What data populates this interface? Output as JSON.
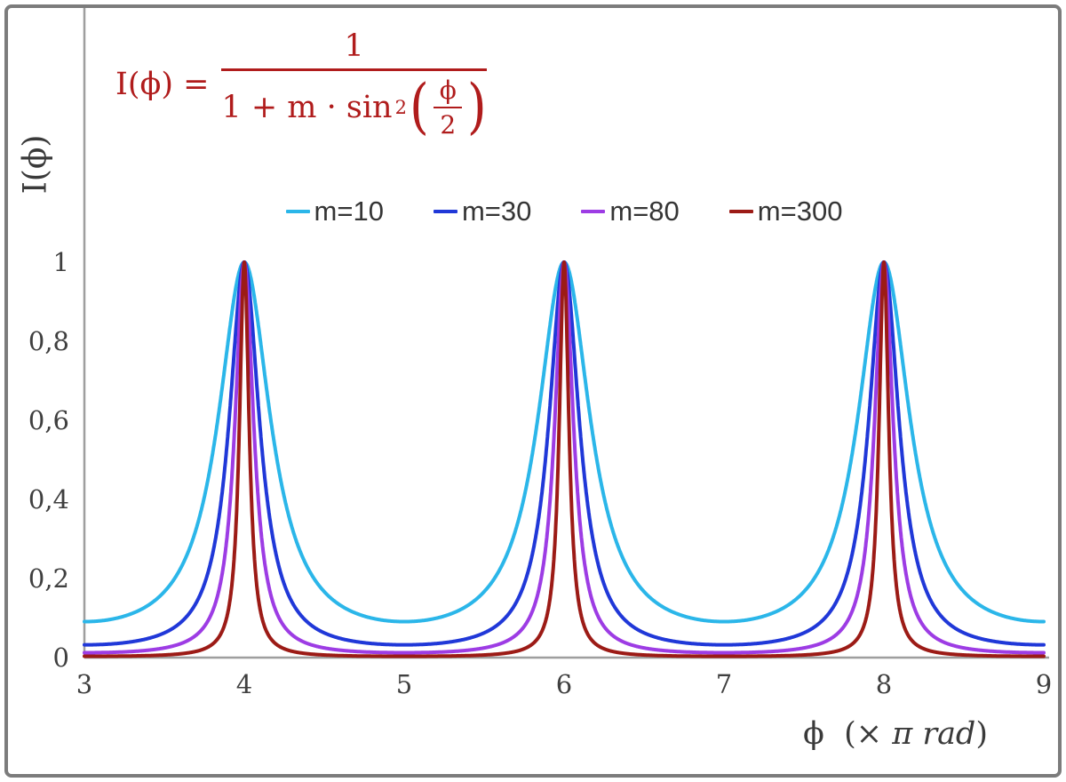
{
  "frame": {
    "background": "#ffffff",
    "border_color": "#7c7c7c"
  },
  "formula": {
    "color": "#b01c1c",
    "lhs": "I(ϕ) =",
    "numerator": "1",
    "denominator_prefix": "1 + m · sin",
    "denominator_exponent": "2",
    "inner_numerator": "ϕ",
    "inner_denominator": "2"
  },
  "chart_data": {
    "type": "line",
    "title": "",
    "formula_text": "I(ϕ) = 1 / (1 + m·sin²(ϕ/2)), ϕ expressed in units of π rad",
    "x_axis": {
      "label": "ϕ (× π rad)",
      "label_parts": {
        "pre": "ϕ  (× ",
        "italic": "π rad",
        "post": ")"
      },
      "min": 3,
      "max": 9,
      "tick_values": [
        3,
        4,
        5,
        6,
        7,
        8,
        9
      ],
      "tick_labels": [
        "3",
        "4",
        "5",
        "6",
        "7",
        "8",
        "9"
      ]
    },
    "y_axis": {
      "label": "I(ϕ)",
      "min": 0,
      "max": 1,
      "tick_values": [
        0,
        0.2,
        0.4,
        0.6,
        0.8,
        1
      ],
      "tick_labels": [
        "0",
        "0,2",
        "0,4",
        "0,6",
        "0,8",
        "1"
      ]
    },
    "series": [
      {
        "name": "m=10",
        "m": 10,
        "color": "#2bb6e9"
      },
      {
        "name": "m=30",
        "m": 30,
        "color": "#2038d8"
      },
      {
        "name": "m=80",
        "m": 80,
        "color": "#9d3ce4"
      },
      {
        "name": "m=300",
        "m": 300,
        "color": "#9c1b16"
      }
    ],
    "peaks": {
      "x": [
        4,
        6,
        8
      ],
      "y": 1
    },
    "minima_values": {
      "m=10": 0.091,
      "m=30": 0.032,
      "m=80": 0.012,
      "m=300": 0.003
    },
    "grid": false,
    "legend_position": "top-center",
    "axis_color": "#9e9e9e",
    "tick_color": "#3f3f3f"
  }
}
